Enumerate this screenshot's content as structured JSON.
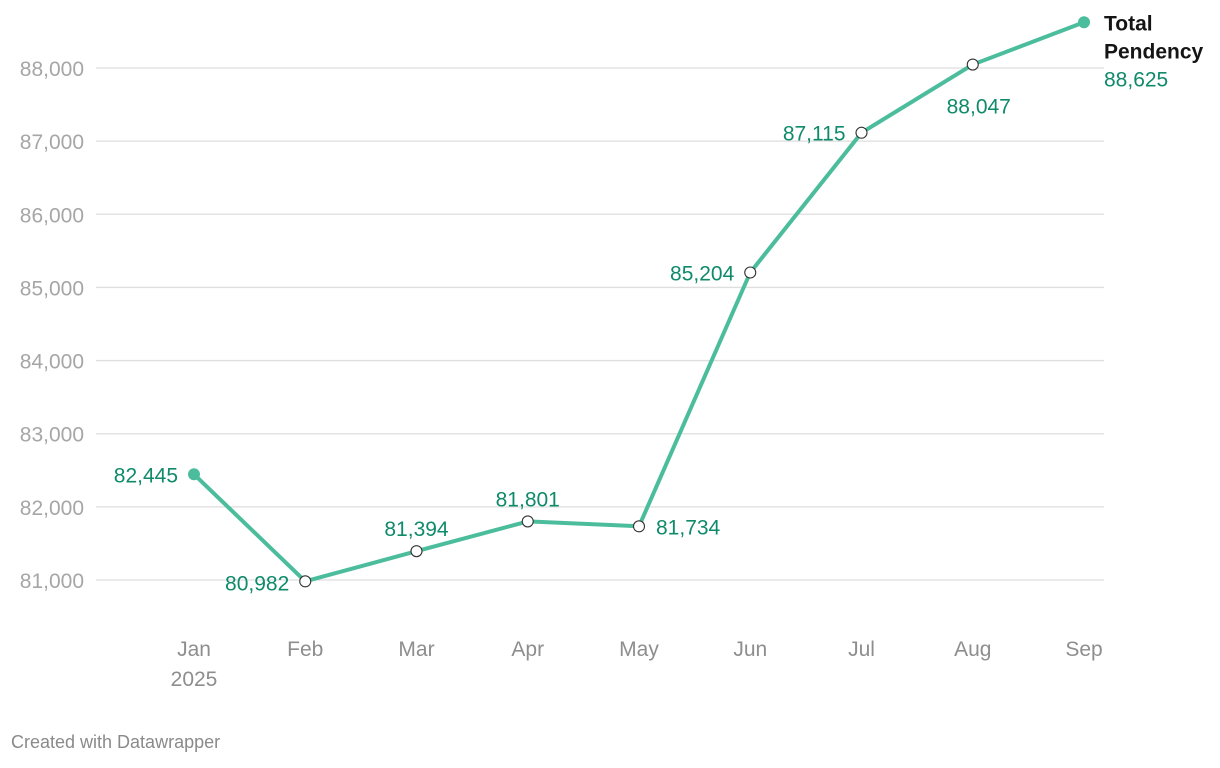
{
  "chart_data": {
    "type": "line",
    "title": "",
    "xlabel": "",
    "ylabel": "",
    "categories": [
      "Jan",
      "Feb",
      "Mar",
      "Apr",
      "May",
      "Jun",
      "Jul",
      "Aug",
      "Sep"
    ],
    "category_sublabels": [
      "2025",
      "",
      "",
      "",
      "",
      "",
      "",
      "",
      ""
    ],
    "yticks": [
      81000,
      82000,
      83000,
      84000,
      85000,
      86000,
      87000,
      88000
    ],
    "ytick_labels": [
      "81,000",
      "82,000",
      "83,000",
      "84,000",
      "85,000",
      "86,000",
      "87,000",
      "88,000"
    ],
    "ylim": [
      80700,
      88700
    ],
    "grid": true,
    "legend": "none",
    "series": [
      {
        "name": "Total Pendency",
        "name_lines": [
          "Total",
          "Pendency"
        ],
        "values": [
          82445,
          80982,
          81394,
          81801,
          81734,
          85204,
          87115,
          88047,
          88625
        ],
        "value_labels": [
          "82,445",
          "80,982",
          "81,394",
          "81,801",
          "81,734",
          "85,204",
          "87,115",
          "88,047",
          "88,625"
        ],
        "color": "#4bbd9c",
        "label_color": "#0f8a6a"
      }
    ]
  },
  "footer": {
    "credit": "Created with Datawrapper"
  }
}
